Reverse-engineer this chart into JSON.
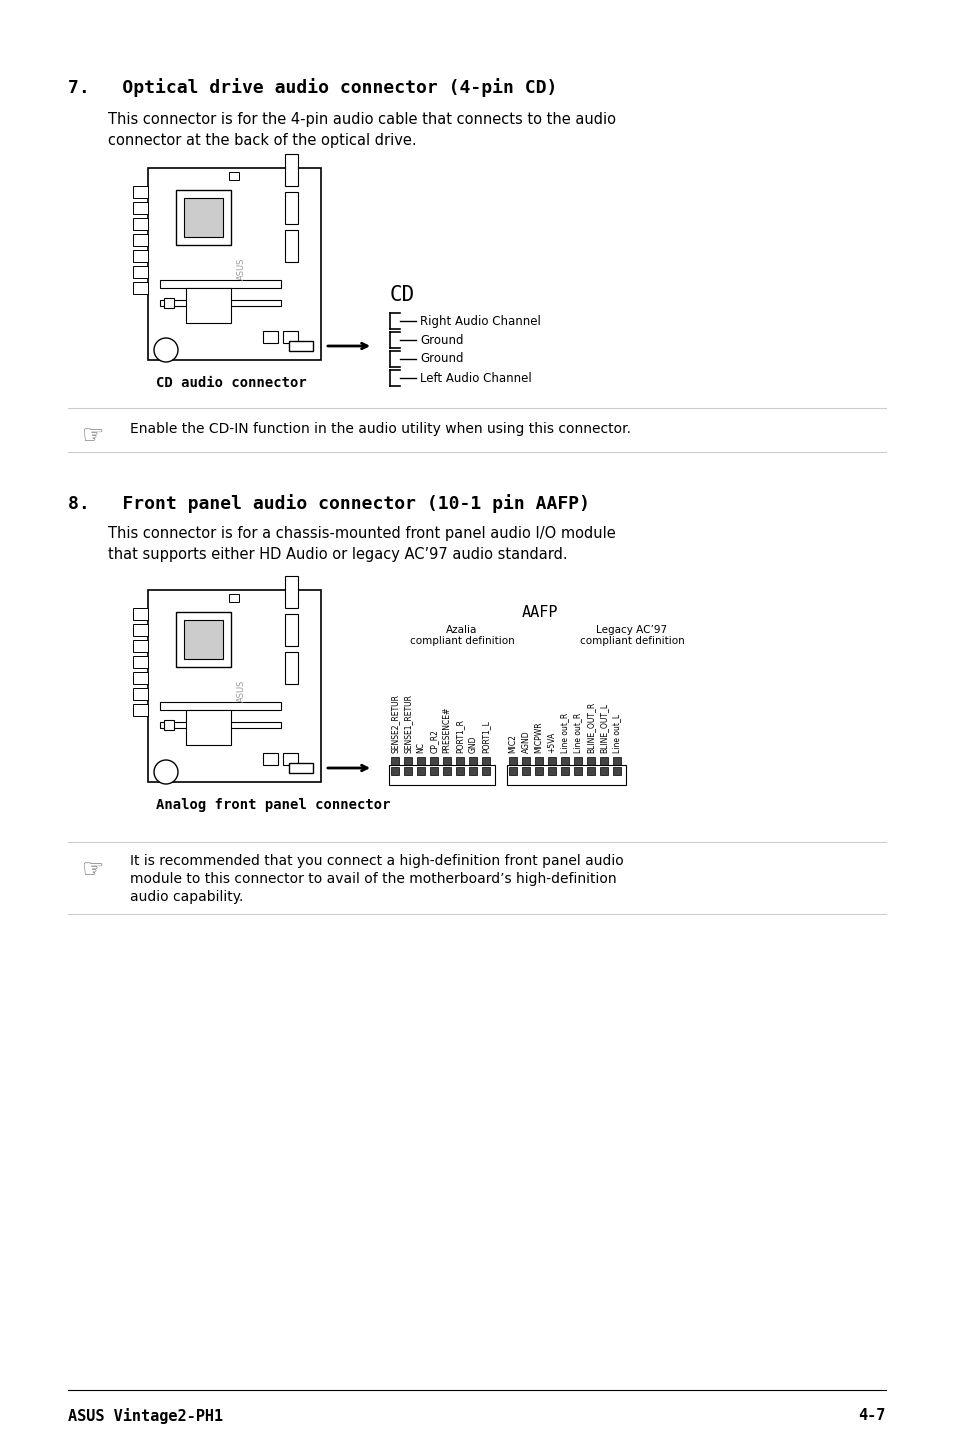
{
  "bg_color": "#ffffff",
  "text_color": "#000000",
  "page_title": "ASUS Vintage2-PH1",
  "page_number": "4-7",
  "section7_heading": "7.   Optical drive audio connector (4-pin CD)",
  "section7_body1": "This connector is for the 4-pin audio cable that connects to the audio",
  "section7_body2": "connector at the back of the optical drive.",
  "section7_cd_label": "CD",
  "section7_pins": [
    "Right Audio Channel",
    "Ground",
    "Ground",
    "Left Audio Channel"
  ],
  "section7_caption": "CD audio connector",
  "section7_note": "Enable the CD-IN function in the audio utility when using this connector.",
  "section8_heading": "8.   Front panel audio connector (10-1 pin AAFP)",
  "section8_body1": "This connector is for a chassis-mounted front panel audio I/O module",
  "section8_body2": "that supports either HD Audio or legacy AC’97 audio standard.",
  "section8_aafp_label": "AAFP",
  "section8_azalia_label": "Azalia",
  "section8_azalia_sub": "compliant definition",
  "section8_legacy_label": "Legacy AC’97",
  "section8_legacy_sub": "compliant definition",
  "section8_azalia_pins": [
    "PORT1_L",
    "GND",
    "PORT1_R",
    "PRESENCE#",
    "CP_R2",
    "NC",
    "SENSE1_RETUR",
    "SENSE2_RETUR"
  ],
  "section8_legacy_pins": [
    "MIC2",
    "AGND",
    "MICPWR",
    "+5VA",
    "Line out_R",
    "Line out_R",
    "BLINE_OUT_R",
    "BLINE_OUT_L",
    "Line out_L"
  ],
  "section8_caption": "Analog front panel connector",
  "section8_note1": "It is recommended that you connect a high-definition front panel audio",
  "section8_note2": "module to this connector to avail of the motherboard’s high-definition",
  "section8_note3": "audio capability.",
  "line_color": "#cccccc"
}
